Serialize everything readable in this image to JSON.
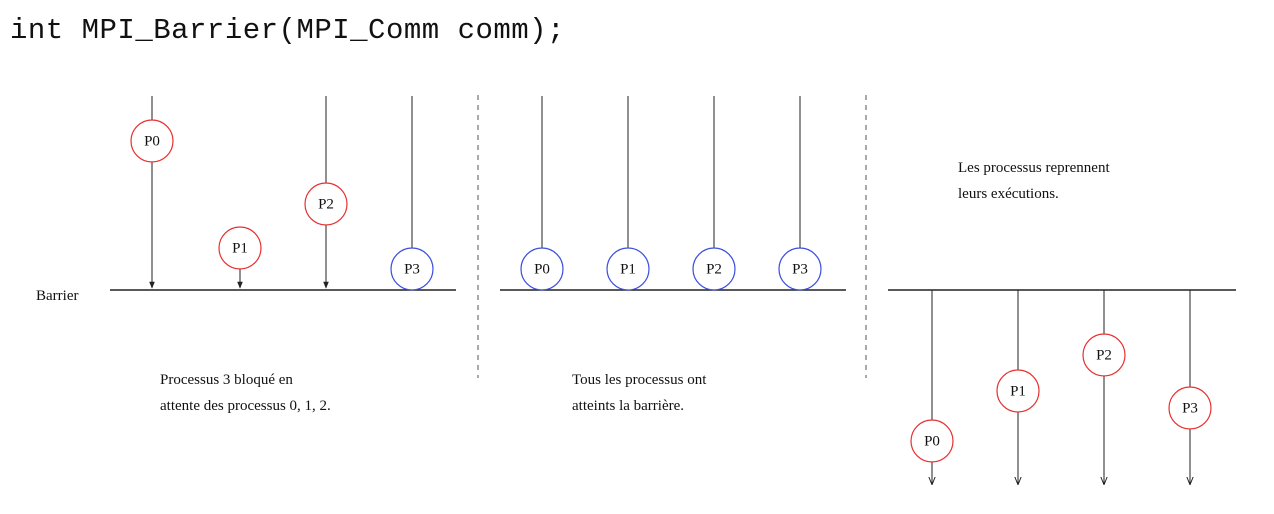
{
  "signature": "int MPI_Barrier(MPI_Comm comm);",
  "colors": {
    "red": "#e83030",
    "blue": "#3a4ee0",
    "line": "#222222",
    "dash": "#555555"
  },
  "barrier_label": "Barrier",
  "panels": [
    {
      "caption": [
        "Processus 3 bloqué en",
        "attente des processus 0, 1, 2."
      ],
      "processes": [
        {
          "label": "P0",
          "state": "red"
        },
        {
          "label": "P1",
          "state": "red"
        },
        {
          "label": "P2",
          "state": "red"
        },
        {
          "label": "P3",
          "state": "blue"
        }
      ]
    },
    {
      "caption": [
        "Tous les processus ont",
        "atteints la barrière."
      ],
      "processes": [
        {
          "label": "P0",
          "state": "blue"
        },
        {
          "label": "P1",
          "state": "blue"
        },
        {
          "label": "P2",
          "state": "blue"
        },
        {
          "label": "P3",
          "state": "blue"
        }
      ]
    },
    {
      "caption": [
        "Les processus reprennent",
        "leurs exécutions."
      ],
      "processes": [
        {
          "label": "P0",
          "state": "red"
        },
        {
          "label": "P1",
          "state": "red"
        },
        {
          "label": "P2",
          "state": "red"
        },
        {
          "label": "P3",
          "state": "red"
        }
      ]
    }
  ]
}
